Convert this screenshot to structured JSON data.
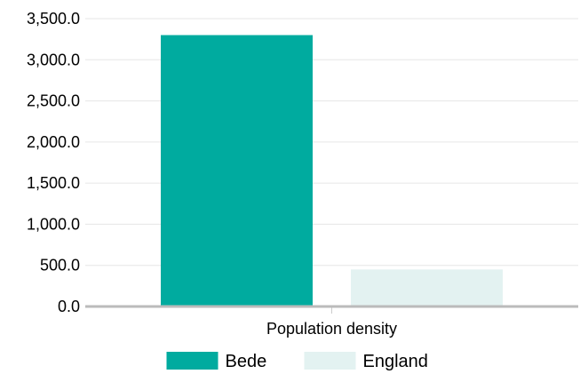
{
  "chart_data": {
    "type": "bar",
    "categories": [
      "Population density"
    ],
    "series": [
      {
        "name": "Bede",
        "values": [
          3300
        ],
        "color": "#00ab9f"
      },
      {
        "name": "England",
        "values": [
          450
        ],
        "color": "#e3f2f1"
      }
    ],
    "ylim": [
      0,
      3500
    ],
    "yticks": [
      "0.0",
      "500.0",
      "1,000.0",
      "1,500.0",
      "2,000.0",
      "2,500.0",
      "3,000.0",
      "3,500.0"
    ],
    "grid": true,
    "legend": "bottom"
  }
}
